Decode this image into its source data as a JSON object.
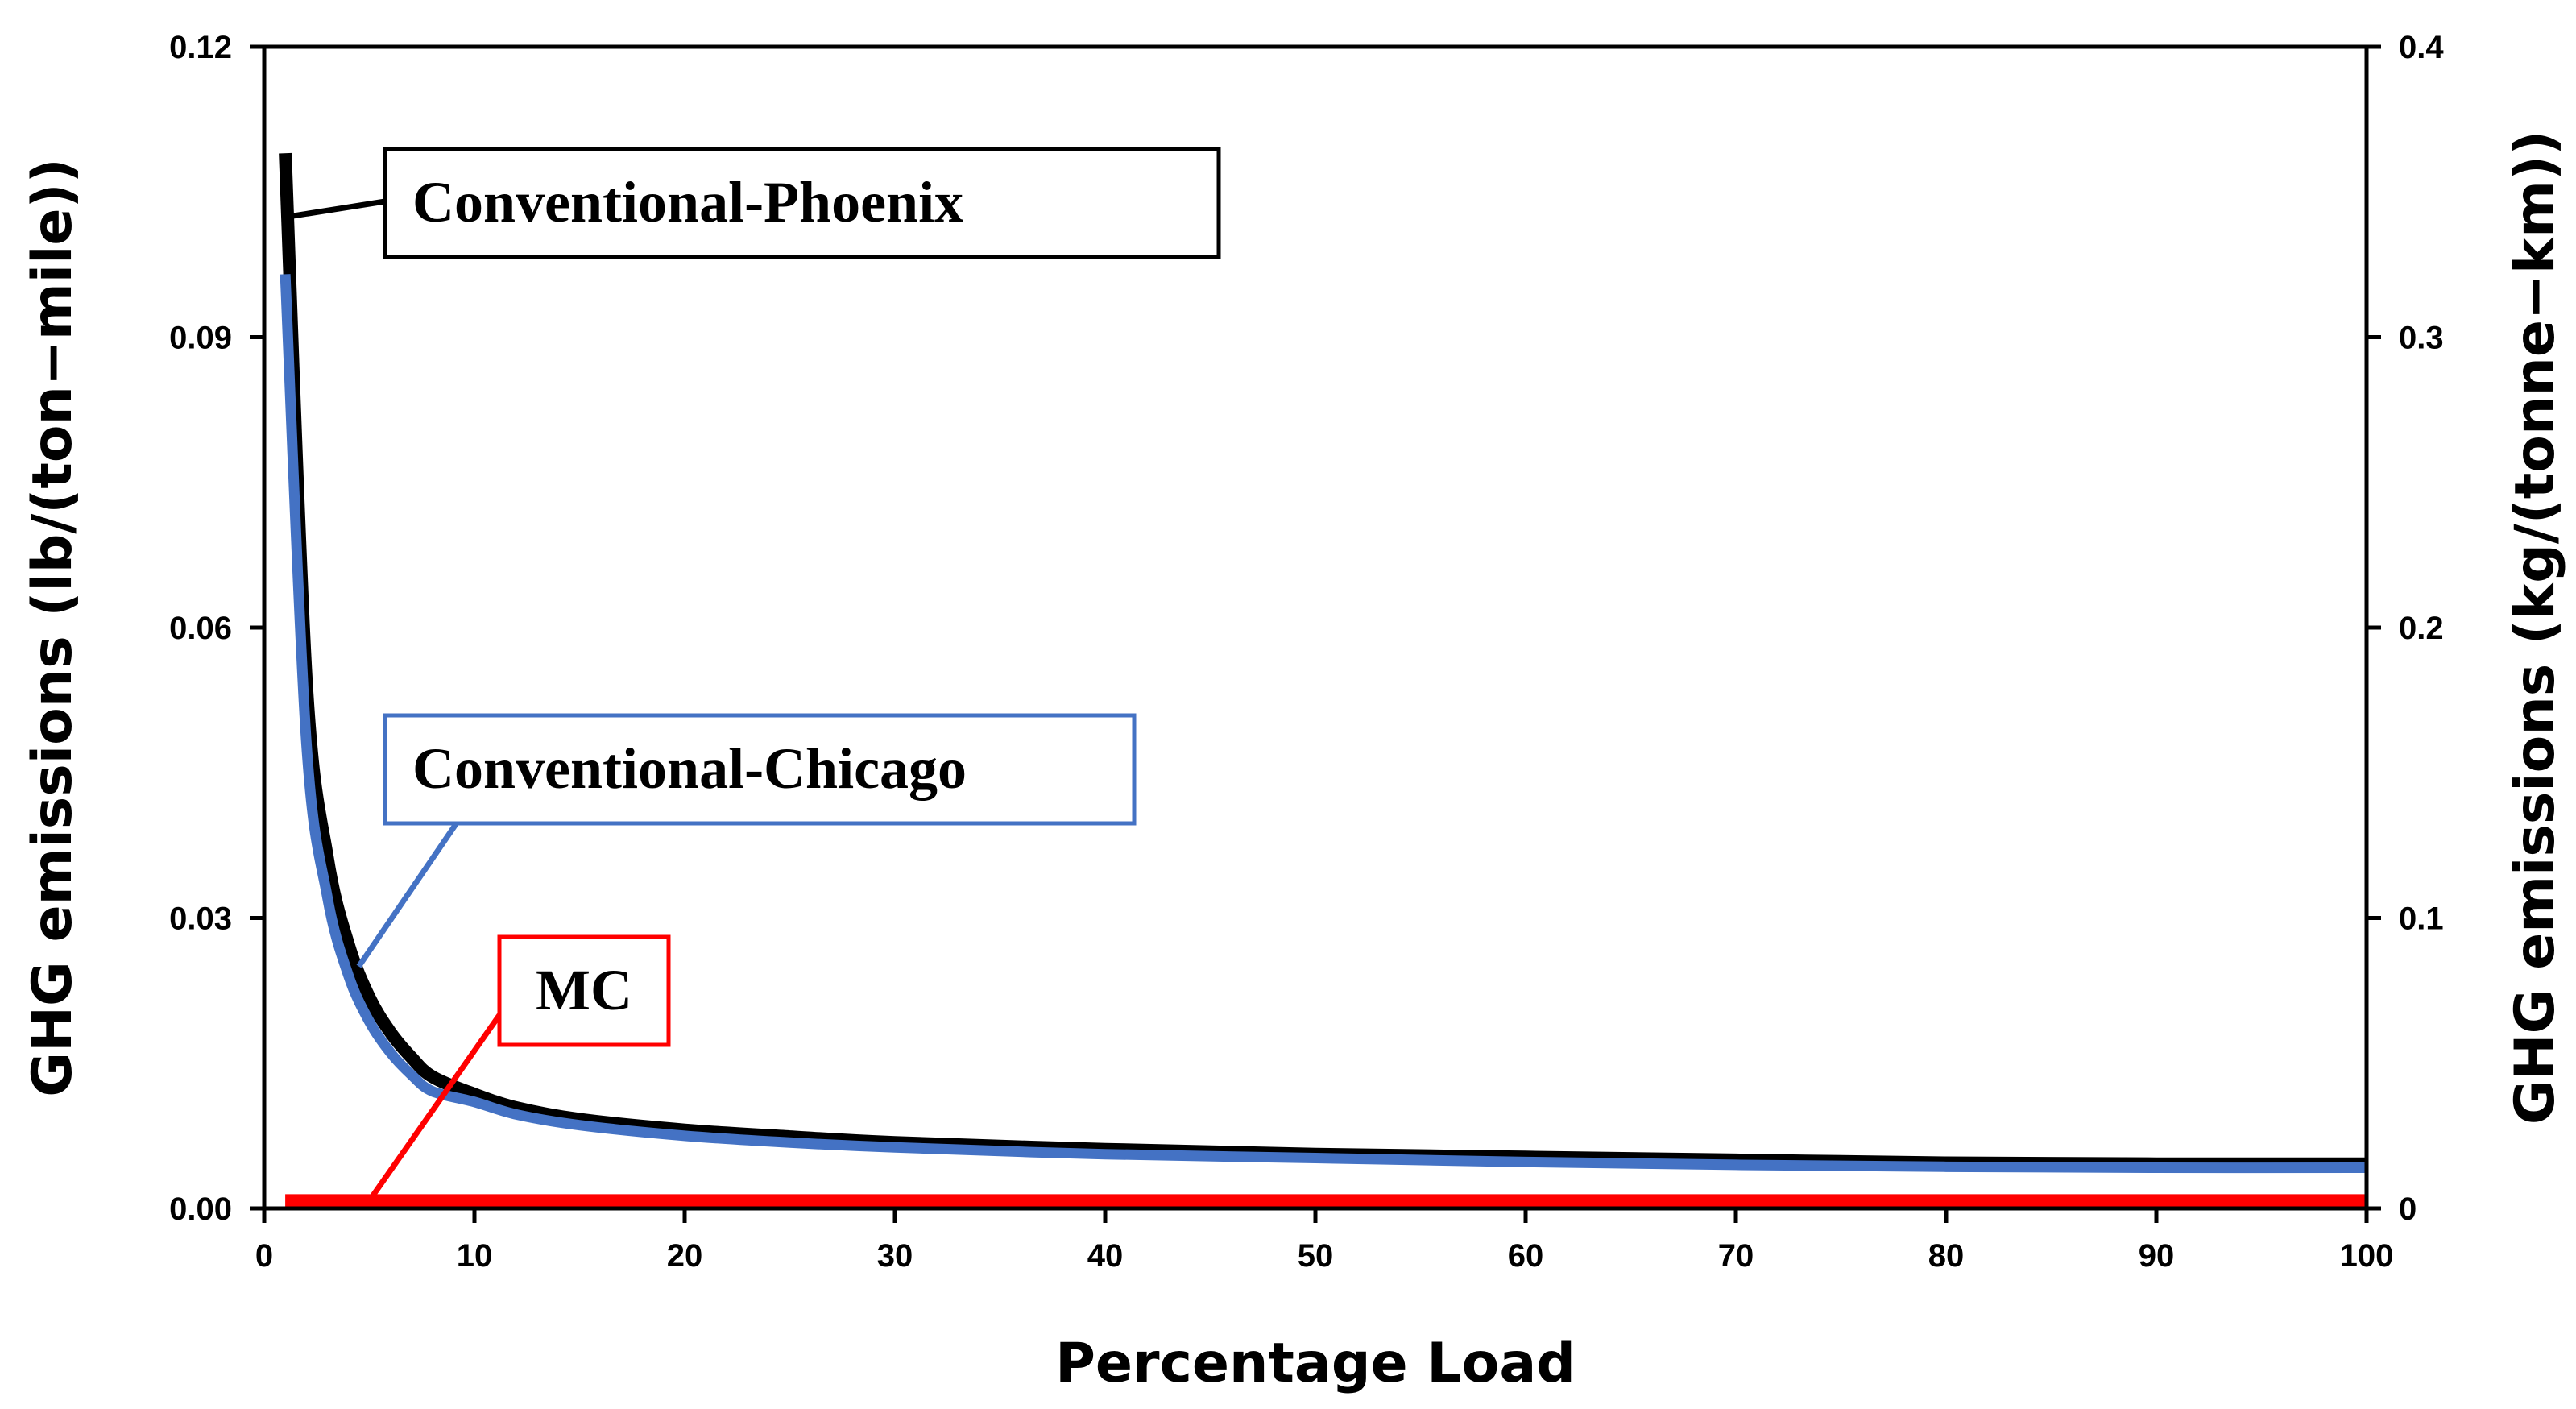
{
  "chart_data": {
    "type": "line",
    "title": "",
    "xlabel": "Percentage Load",
    "ylabel": "GHG emissions (lb/(ton−mile))",
    "ylabel_right": "GHG emissions (kg/(tonne−km))",
    "xlim": [
      0,
      100
    ],
    "ylim": [
      0,
      0.12
    ],
    "ylim_right": [
      0,
      0.4
    ],
    "xticks": [
      0,
      10,
      20,
      30,
      40,
      50,
      60,
      70,
      80,
      90,
      100
    ],
    "xtick_labels": [
      "0",
      "10",
      "20",
      "30",
      "40",
      "50",
      "60",
      "70",
      "80",
      "90",
      "100"
    ],
    "yticks": [
      0,
      0.03,
      0.06,
      0.09,
      0.12
    ],
    "ytick_labels": [
      "0.00",
      "0.03",
      "0.06",
      "0.09",
      "0.12"
    ],
    "yticks_right": [
      0,
      0.1,
      0.2,
      0.3,
      0.4
    ],
    "ytick_labels_right": [
      "0",
      "0.1",
      "0.2",
      "0.3",
      "0.4"
    ],
    "grid": false,
    "x": [
      1,
      2,
      3,
      4,
      5,
      6,
      7,
      8,
      10,
      12,
      15,
      20,
      25,
      30,
      40,
      50,
      60,
      70,
      80,
      90,
      100
    ],
    "series": [
      {
        "name": "Conventional-Phoenix",
        "color": "#000000",
        "values": [
          0.109,
          0.0545,
          0.0363,
          0.0273,
          0.0218,
          0.0182,
          0.0156,
          0.0136,
          0.0118,
          0.0104,
          0.0092,
          0.0081,
          0.0074,
          0.0068,
          0.0061,
          0.0056,
          0.0053,
          0.005,
          0.0047,
          0.0046,
          0.0046
        ]
      },
      {
        "name": "Conventional-Chicago",
        "color": "#4472C4",
        "values": [
          0.0965,
          0.0483,
          0.0322,
          0.0241,
          0.0193,
          0.0161,
          0.0138,
          0.0121,
          0.011,
          0.0097,
          0.0086,
          0.0075,
          0.0068,
          0.0063,
          0.0056,
          0.0052,
          0.0048,
          0.0045,
          0.0043,
          0.0042,
          0.0042
        ]
      },
      {
        "name": "MC",
        "color": "#FF0000",
        "values": [
          0.0008,
          0.0008,
          0.0008,
          0.0008,
          0.0008,
          0.0008,
          0.0008,
          0.0008,
          0.0008,
          0.0008,
          0.0008,
          0.0008,
          0.0008,
          0.0008,
          0.0008,
          0.0008,
          0.0008,
          0.0008,
          0.0008,
          0.0008,
          0.0008
        ]
      }
    ],
    "annotations": [
      {
        "text": "Conventional-Phoenix",
        "series": "Conventional-Phoenix",
        "point_to": [
          1.3,
          0.1025
        ],
        "box_color": "#000000"
      },
      {
        "text": "Conventional-Chicago",
        "series": "Conventional-Chicago",
        "point_to": [
          4.5,
          0.025
        ],
        "box_color": "#4472C4"
      },
      {
        "text": "MC",
        "series": "MC",
        "point_to": [
          5,
          0.0008
        ],
        "box_color": "#FF0000"
      }
    ]
  }
}
